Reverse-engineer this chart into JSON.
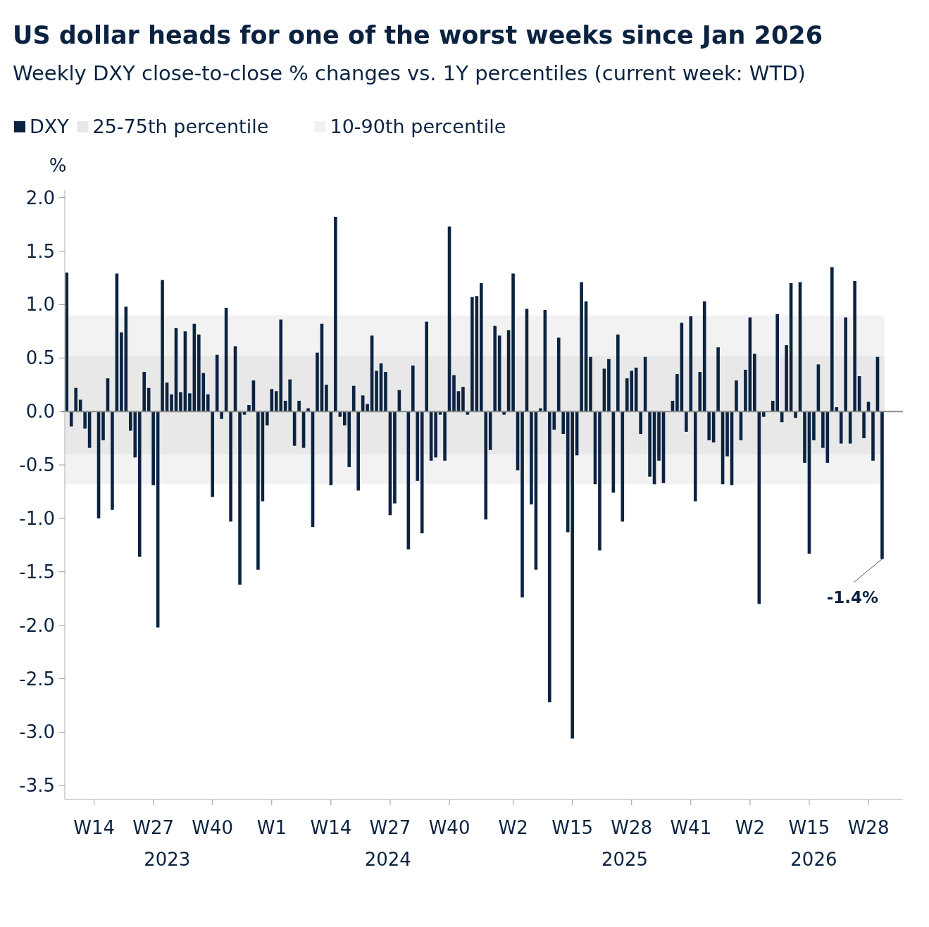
{
  "chart_data": {
    "type": "bar",
    "title": "US dollar heads for one of the worst weeks since Jan 2026",
    "subtitle": "Weekly DXY close-to-close % changes vs. 1Y percentiles (current week: WTD)",
    "ylabel": "%",
    "legend": "top left",
    "x": [
      "2023-02-24",
      "2023-03-03",
      "2023-03-10",
      "2023-03-17",
      "2023-03-24",
      "2023-03-31",
      "2023-04-07",
      "2023-04-14",
      "2023-04-21",
      "2023-04-28",
      "2023-05-05",
      "2023-05-12",
      "2023-05-19",
      "2023-05-26",
      "2023-06-02",
      "2023-06-09",
      "2023-06-16",
      "2023-06-23",
      "2023-06-30",
      "2023-07-07",
      "2023-07-14",
      "2023-07-21",
      "2023-07-28",
      "2023-08-04",
      "2023-08-11",
      "2023-08-18",
      "2023-08-25",
      "2023-09-01",
      "2023-09-08",
      "2023-09-15",
      "2023-09-22",
      "2023-09-29",
      "2023-10-06",
      "2023-10-13",
      "2023-10-20",
      "2023-10-27",
      "2023-11-03",
      "2023-11-10",
      "2023-11-17",
      "2023-11-24",
      "2023-12-01",
      "2023-12-08",
      "2023-12-15",
      "2023-12-22",
      "2023-12-29",
      "2024-01-05",
      "2024-01-12",
      "2024-01-19",
      "2024-01-26",
      "2024-02-02",
      "2024-02-09",
      "2024-02-16",
      "2024-02-23",
      "2024-03-01",
      "2024-03-08",
      "2024-03-15",
      "2024-03-22",
      "2024-03-29",
      "2024-04-05",
      "2024-04-12",
      "2024-04-19",
      "2024-04-26",
      "2024-05-03",
      "2024-05-10",
      "2024-05-17",
      "2024-05-24",
      "2024-05-31",
      "2024-06-07",
      "2024-06-14",
      "2024-06-21",
      "2024-06-28",
      "2024-07-05",
      "2024-07-12",
      "2024-07-19",
      "2024-07-26",
      "2024-08-02",
      "2024-08-09",
      "2024-08-16",
      "2024-08-23",
      "2024-08-30",
      "2024-09-06",
      "2024-09-13",
      "2024-09-20",
      "2024-09-27",
      "2024-10-04",
      "2024-10-11",
      "2024-10-18",
      "2024-10-25",
      "2024-11-01",
      "2024-11-08",
      "2024-11-15",
      "2024-11-22",
      "2024-11-29",
      "2024-12-06",
      "2024-12-13",
      "2024-12-20",
      "2024-12-27",
      "2025-01-03",
      "2025-01-10",
      "2025-01-17",
      "2025-01-24",
      "2025-01-31",
      "2025-02-07",
      "2025-02-14",
      "2025-02-21",
      "2025-02-28",
      "2025-03-07",
      "2025-03-14",
      "2025-03-21",
      "2025-03-28",
      "2025-04-04",
      "2025-04-11",
      "2025-04-18",
      "2025-04-25",
      "2025-05-02",
      "2025-05-09",
      "2025-05-16",
      "2025-05-23",
      "2025-05-30",
      "2025-06-06",
      "2025-06-13",
      "2025-06-20",
      "2025-06-27",
      "2025-07-04",
      "2025-07-11",
      "2025-07-18",
      "2025-07-25",
      "2025-08-01",
      "2025-08-08",
      "2025-08-15",
      "2025-08-22",
      "2025-08-29",
      "2025-09-05",
      "2025-09-12",
      "2025-09-19",
      "2025-09-26",
      "2025-10-03",
      "2025-10-10",
      "2025-10-17",
      "2025-10-24",
      "2025-10-31",
      "2025-11-07",
      "2025-11-14",
      "2025-11-21",
      "2025-11-28",
      "2025-12-05",
      "2025-12-12",
      "2025-12-19",
      "2025-12-26",
      "2026-01-02",
      "2026-01-09",
      "2026-01-16",
      "2026-01-23",
      "2026-01-30",
      "2026-02-06",
      "2026-02-13",
      "2026-02-20",
      "2026-02-27",
      "2026-03-06",
      "2026-03-13",
      "2026-03-20",
      "2026-03-27",
      "2026-04-03",
      "2026-04-10",
      "2026-04-17",
      "2026-04-24",
      "2026-05-01",
      "2026-05-08",
      "2026-05-15",
      "2026-05-22",
      "2026-05-29",
      "2026-06-05",
      "2026-06-12",
      "2026-06-19",
      "2026-06-26",
      "2026-07-03",
      "2026-07-10",
      "2026-07-17",
      "2026-07-24",
      "2026-07-31"
    ],
    "series": [
      {
        "name": "DXY",
        "color": "#0b2341",
        "values": [
          1.3,
          -0.14,
          0.22,
          0.11,
          -0.16,
          -0.34,
          null,
          -1.0,
          -0.27,
          0.31,
          -0.92,
          1.29,
          0.74,
          0.98,
          -0.18,
          -0.43,
          -1.36,
          0.37,
          0.22,
          -0.69,
          -2.02,
          1.23,
          0.27,
          0.16,
          0.78,
          0.18,
          0.75,
          0.17,
          0.82,
          0.72,
          0.36,
          0.16,
          -0.8,
          0.53,
          -0.07,
          0.97,
          -1.03,
          0.61,
          -1.62,
          -0.03,
          0.06,
          0.29,
          -1.48,
          -0.84,
          -0.13,
          0.21,
          0.19,
          0.86,
          0.1,
          0.3,
          -0.32,
          0.1,
          -0.34,
          0.03,
          -1.08,
          0.55,
          0.82,
          0.25,
          -0.69,
          1.82,
          -0.05,
          -0.13,
          -0.52,
          0.24,
          -0.74,
          0.15,
          0.07,
          0.71,
          0.38,
          0.45,
          0.37,
          -0.97,
          -0.86,
          0.2,
          null,
          -1.29,
          0.43,
          -0.65,
          -1.14,
          0.84,
          -0.46,
          -0.43,
          -0.03,
          -0.46,
          1.73,
          0.34,
          0.19,
          0.23,
          -0.03,
          1.07,
          1.08,
          1.2,
          -1.01,
          -0.36,
          0.8,
          0.71,
          -0.03,
          0.76,
          1.29,
          -0.55,
          -1.74,
          0.96,
          -0.87,
          -1.48,
          0.03,
          0.95,
          -2.72,
          -0.17,
          0.69,
          -0.21,
          -1.13,
          -3.06,
          -0.41,
          1.21,
          1.03,
          0.51,
          -0.68,
          -1.3,
          0.4,
          0.49,
          -0.76,
          0.72,
          -1.03,
          0.31,
          0.38,
          0.41,
          -0.21,
          0.51,
          -0.61,
          -0.68,
          -0.46,
          -0.67,
          null,
          0.1,
          0.35,
          0.83,
          -0.19,
          0.89,
          -0.84,
          0.37,
          1.03,
          -0.27,
          -0.29,
          0.6,
          -0.68,
          -0.42,
          -0.69,
          0.29,
          -0.27,
          0.39,
          0.88,
          0.54,
          -1.8,
          -0.05,
          null,
          0.1,
          0.91,
          -0.1,
          0.62,
          1.2,
          -0.06,
          1.21,
          -0.48,
          -1.33,
          -0.27,
          0.44,
          -0.34,
          -0.48,
          1.35,
          0.04,
          -0.3,
          0.88,
          -0.3,
          1.22,
          0.33,
          -0.25,
          0.09,
          -0.46,
          0.51,
          -1.38
        ]
      }
    ],
    "bands": [
      {
        "axis": "y",
        "from": -0.68,
        "to": 0.9,
        "label": "10-90th percentile",
        "color": "#f2f2f2"
      },
      {
        "axis": "y",
        "from": -0.4,
        "to": 0.52,
        "label": "25-75th percentile",
        "color": "#e8e8e8"
      }
    ],
    "ylim": [
      -3.63,
      2.07
    ],
    "yticks": [
      {
        "value": -3.5,
        "label": "-3.5"
      },
      {
        "value": -3,
        "label": "-3.0"
      },
      {
        "value": -2.5,
        "label": "-2.5"
      },
      {
        "value": -2,
        "label": "-2.0"
      },
      {
        "value": -1.5,
        "label": "-1.5"
      },
      {
        "value": -1,
        "label": "-1.0"
      },
      {
        "value": -0.5,
        "label": "-0.5"
      },
      {
        "value": 0,
        "label": "0.0"
      },
      {
        "value": 0.5,
        "label": "0.5"
      },
      {
        "value": 1,
        "label": "1.0"
      },
      {
        "value": 1.5,
        "label": "1.5"
      },
      {
        "value": 2,
        "label": "2.0"
      }
    ],
    "xlim": [
      "2023-02-21",
      "2026-09-01"
    ],
    "xticks": [
      {
        "value": "2023-04-07",
        "label": "W14"
      },
      {
        "value": "2023-07-07",
        "label": "W27"
      },
      {
        "value": "2023-10-06",
        "label": "W40"
      },
      {
        "value": "2024-01-05",
        "label": "W1"
      },
      {
        "value": "2024-04-05",
        "label": "W14"
      },
      {
        "value": "2024-07-05",
        "label": "W27"
      },
      {
        "value": "2024-10-04",
        "label": "W40"
      },
      {
        "value": "2025-01-10",
        "label": "W2"
      },
      {
        "value": "2025-04-11",
        "label": "W15"
      },
      {
        "value": "2025-07-11",
        "label": "W28"
      },
      {
        "value": "2025-10-10",
        "label": "W41"
      },
      {
        "value": "2026-01-09",
        "label": "W2"
      },
      {
        "value": "2026-04-10",
        "label": "W15"
      },
      {
        "value": "2026-07-10",
        "label": "W28"
      }
    ],
    "annotations": [
      "2023",
      "2024",
      "2025",
      "2026",
      {
        "text": "-1.4%",
        "x": "2026-07-31",
        "y": -1.38
      }
    ]
  }
}
